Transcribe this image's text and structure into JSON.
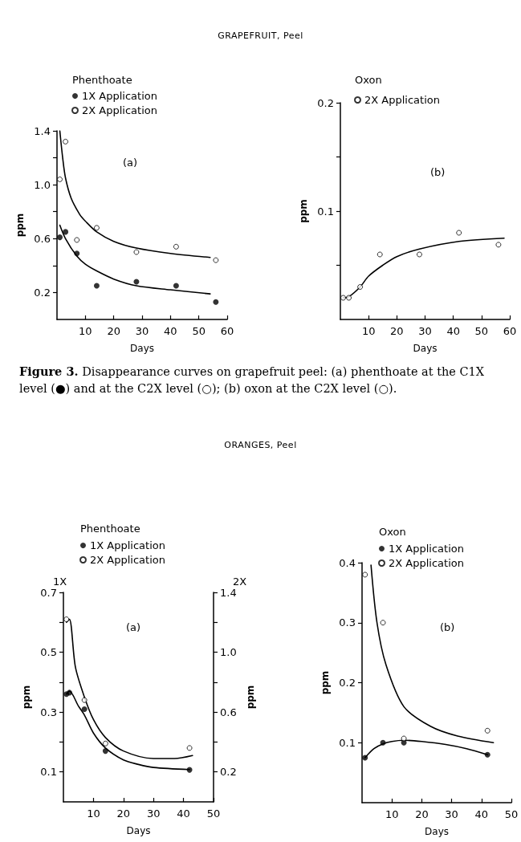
{
  "chart_data": [
    {
      "type": "scatter",
      "title": "GRAPEFRUIT, Peel",
      "legend_title": "Phenthoate",
      "legend": "top",
      "xlabel": "Days",
      "ylabel": "ppm",
      "xlim": [
        0,
        60
      ],
      "xticks": [
        10,
        20,
        30,
        40,
        50,
        60
      ],
      "ylim": [
        0,
        1.4
      ],
      "yticks": [
        {
          "value": 0.2,
          "label": "0.2"
        },
        {
          "value": 0.4,
          "label": null
        },
        {
          "value": 0.6,
          "label": "0.6"
        },
        {
          "value": 0.8,
          "label": null
        },
        {
          "value": 1.0,
          "label": "1.0"
        },
        {
          "value": 1.2,
          "label": null
        },
        {
          "value": 1.4,
          "label": "1.4"
        }
      ],
      "grid": false,
      "annotations": [
        "(a)",
        "Figure 3. Disappearance curves on grapefruit peel: (a) phenthoate at the C1X level (●) and at the C2X level (○); (b) oxon at the C2X level (○)."
      ],
      "series": [
        {
          "name": "1X Application",
          "type": "scatter",
          "marker": "circle",
          "color": "#000000",
          "x": [
            1,
            3,
            7,
            14,
            28,
            42,
            56
          ],
          "values": [
            0.61,
            0.65,
            0.49,
            0.25,
            0.28,
            0.25,
            0.13
          ]
        },
        {
          "name": "2X Application",
          "type": "scatter",
          "marker": "circle",
          "color": "#ffffff",
          "x": [
            1,
            3,
            7,
            14,
            28,
            42,
            56
          ],
          "values": [
            1.04,
            1.32,
            0.59,
            0.68,
            0.5,
            0.54,
            0.44
          ]
        },
        {
          "type": "line",
          "marker": "none",
          "line_style": "solid",
          "color": "#000000",
          "x": [
            1,
            3,
            7,
            10,
            14,
            20,
            28,
            40,
            54
          ],
          "values": [
            0.7,
            0.6,
            0.47,
            0.41,
            0.36,
            0.3,
            0.25,
            0.22,
            0.19
          ]
        },
        {
          "type": "line",
          "marker": "none",
          "line_style": "solid",
          "color": "#000000",
          "x": [
            1,
            2,
            3,
            5,
            8,
            10,
            14,
            20,
            28,
            40,
            54
          ],
          "values": [
            1.4,
            1.2,
            1.05,
            0.9,
            0.78,
            0.73,
            0.65,
            0.58,
            0.53,
            0.49,
            0.46
          ]
        }
      ]
    },
    {
      "type": "scatter",
      "legend_title": "Oxon",
      "legend": "top",
      "xlabel": "Days",
      "ylabel": "ppm",
      "xlim": [
        0,
        60
      ],
      "xticks": [
        10,
        20,
        30,
        40,
        50,
        60
      ],
      "ylim": [
        0,
        0.2
      ],
      "yticks": [
        {
          "value": 0.05,
          "label": null
        },
        {
          "value": 0.1,
          "label": "0.1"
        },
        {
          "value": 0.15,
          "label": null
        },
        {
          "value": 0.2,
          "label": "0.2"
        }
      ],
      "grid": false,
      "annotations": [
        "(b)"
      ],
      "series": [
        {
          "name": "2X Application",
          "type": "scatter",
          "marker": "circle",
          "color": "#ffffff",
          "x": [
            1,
            3,
            7,
            14,
            28,
            42,
            56
          ],
          "values": [
            0.02,
            0.02,
            0.03,
            0.06,
            0.06,
            0.08,
            0.069
          ]
        },
        {
          "type": "line",
          "marker": "none",
          "line_style": "solid",
          "color": "#000000",
          "x": [
            1,
            3,
            7,
            10,
            15,
            20,
            28,
            42,
            58
          ],
          "values": [
            0.02,
            0.021,
            0.03,
            0.04,
            0.05,
            0.058,
            0.065,
            0.072,
            0.075
          ]
        }
      ]
    },
    {
      "type": "scatter",
      "title": "ORANGES, Peel",
      "legend_title": "Phenthoate",
      "legend": "top",
      "xlabel": "Days",
      "ylabel": "ppm",
      "y2label": "ppm",
      "xlim": [
        0,
        50
      ],
      "xticks": [
        10,
        20,
        30,
        40,
        50
      ],
      "ylim": [
        0,
        0.7
      ],
      "yticks": [
        {
          "value": 0.1,
          "label": "0.1"
        },
        {
          "value": 0.2,
          "label": null
        },
        {
          "value": 0.3,
          "label": "0.3"
        },
        {
          "value": 0.4,
          "label": null
        },
        {
          "value": 0.5,
          "label": "0.5"
        },
        {
          "value": 0.6,
          "label": null
        },
        {
          "value": 0.7,
          "label": "0.7"
        }
      ],
      "y2lim": [
        0,
        1.4
      ],
      "y2ticks": [
        {
          "value": 0.2,
          "label": "0.2"
        },
        {
          "value": 0.4,
          "label": null
        },
        {
          "value": 0.6,
          "label": "0.6"
        },
        {
          "value": 0.8,
          "label": null
        },
        {
          "value": 1.0,
          "label": "1.0"
        },
        {
          "value": 1.2,
          "label": null
        },
        {
          "value": 1.4,
          "label": "1.4"
        }
      ],
      "grid": false,
      "annotations": [
        "(a)",
        "1X",
        "2X"
      ],
      "series": [
        {
          "name": "1X Application",
          "type": "scatter",
          "marker": "circle",
          "color": "#000000",
          "x": [
            1,
            2,
            7,
            14,
            42
          ],
          "values": [
            0.36,
            0.365,
            0.31,
            0.17,
            0.107
          ]
        },
        {
          "name": "2X Application",
          "type": "scatter",
          "axis": "y2",
          "marker": "circle",
          "color": "#ffffff",
          "x": [
            1,
            7,
            14,
            42
          ],
          "values": [
            1.22,
            0.68,
            0.39,
            0.36
          ]
        },
        {
          "type": "line",
          "marker": "none",
          "line_style": "solid",
          "color": "#000000",
          "x": [
            1,
            2,
            5,
            7,
            10,
            14,
            20,
            25,
            30,
            42
          ],
          "values": [
            0.36,
            0.37,
            0.32,
            0.29,
            0.23,
            0.18,
            0.14,
            0.125,
            0.115,
            0.108
          ]
        },
        {
          "type": "line",
          "axis": "y2",
          "marker": "none",
          "line_style": "solid",
          "color": "#000000",
          "x": [
            1,
            2,
            4,
            7,
            10,
            14,
            20,
            30,
            37,
            43
          ],
          "values": [
            1.2,
            1.22,
            0.9,
            0.7,
            0.55,
            0.43,
            0.34,
            0.29,
            0.29,
            0.31
          ]
        }
      ]
    },
    {
      "type": "scatter",
      "legend_title": "Oxon",
      "legend": "top",
      "xlabel": "Days",
      "ylabel": "ppm",
      "xlim": [
        0,
        50
      ],
      "xticks": [
        10,
        20,
        30,
        40,
        50
      ],
      "ylim": [
        0,
        0.4
      ],
      "yticks": [
        0.1,
        0.2,
        0.3,
        0.4
      ],
      "grid": false,
      "annotations": [
        "(b)"
      ],
      "series": [
        {
          "name": "1X Application",
          "type": "scatter",
          "marker": "circle",
          "color": "#000000",
          "x": [
            1,
            7,
            14,
            42
          ],
          "values": [
            0.075,
            0.1,
            0.1,
            0.08
          ]
        },
        {
          "name": "2X Application",
          "type": "scatter",
          "marker": "circle",
          "color": "#ffffff",
          "x": [
            1,
            7,
            14,
            42
          ],
          "values": [
            0.38,
            0.3,
            0.107,
            0.12
          ]
        },
        {
          "type": "line",
          "marker": "none",
          "line_style": "solid",
          "color": "#000000",
          "x": [
            1,
            4,
            7,
            10,
            14,
            20,
            28,
            35,
            42
          ],
          "values": [
            0.075,
            0.09,
            0.098,
            0.102,
            0.104,
            0.102,
            0.097,
            0.09,
            0.08
          ]
        },
        {
          "type": "line",
          "marker": "none",
          "line_style": "solid",
          "color": "#000000",
          "x": [
            3,
            5,
            8,
            14,
            23,
            32,
            44
          ],
          "values": [
            0.396,
            0.3,
            0.23,
            0.16,
            0.127,
            0.111,
            0.1
          ]
        }
      ]
    }
  ]
}
